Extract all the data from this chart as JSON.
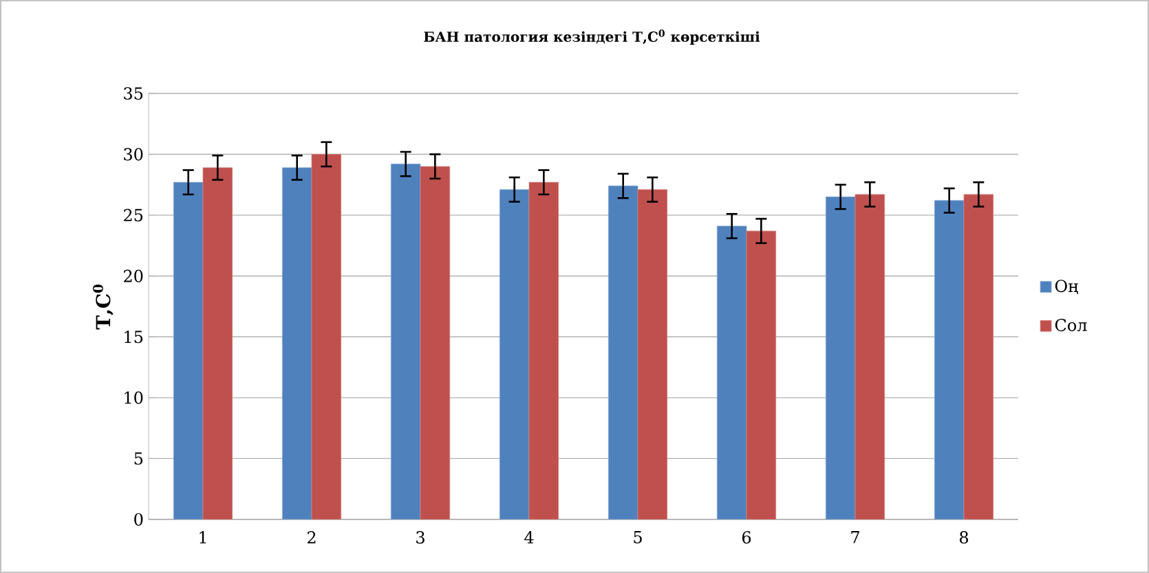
{
  "chart_data": {
    "type": "bar",
    "title": "БАН патология кезіндегі Т,С$^{0}$ көрсеткіші",
    "ylabel": "Т,С$^{0}$",
    "categories": [
      "1",
      "2",
      "3",
      "4",
      "5",
      "6",
      "7",
      "8"
    ],
    "series": [
      {
        "name": "Оң",
        "color": "#4f81bd",
        "values": [
          27.7,
          28.9,
          29.2,
          27.1,
          27.4,
          24.1,
          26.5,
          26.2
        ],
        "errors": [
          1,
          1,
          1,
          1,
          1,
          1,
          1,
          1
        ]
      },
      {
        "name": "Сол",
        "color": "#c0504d",
        "values": [
          28.9,
          30.0,
          29.0,
          27.7,
          27.1,
          23.7,
          26.7,
          26.7
        ],
        "errors": [
          1,
          1,
          1,
          1,
          1,
          1,
          1,
          1
        ]
      }
    ],
    "ylim": [
      0,
      35
    ],
    "yticks": [
      0,
      5,
      10,
      15,
      20,
      25,
      30,
      35
    ],
    "grid": "y",
    "legend": "right"
  }
}
